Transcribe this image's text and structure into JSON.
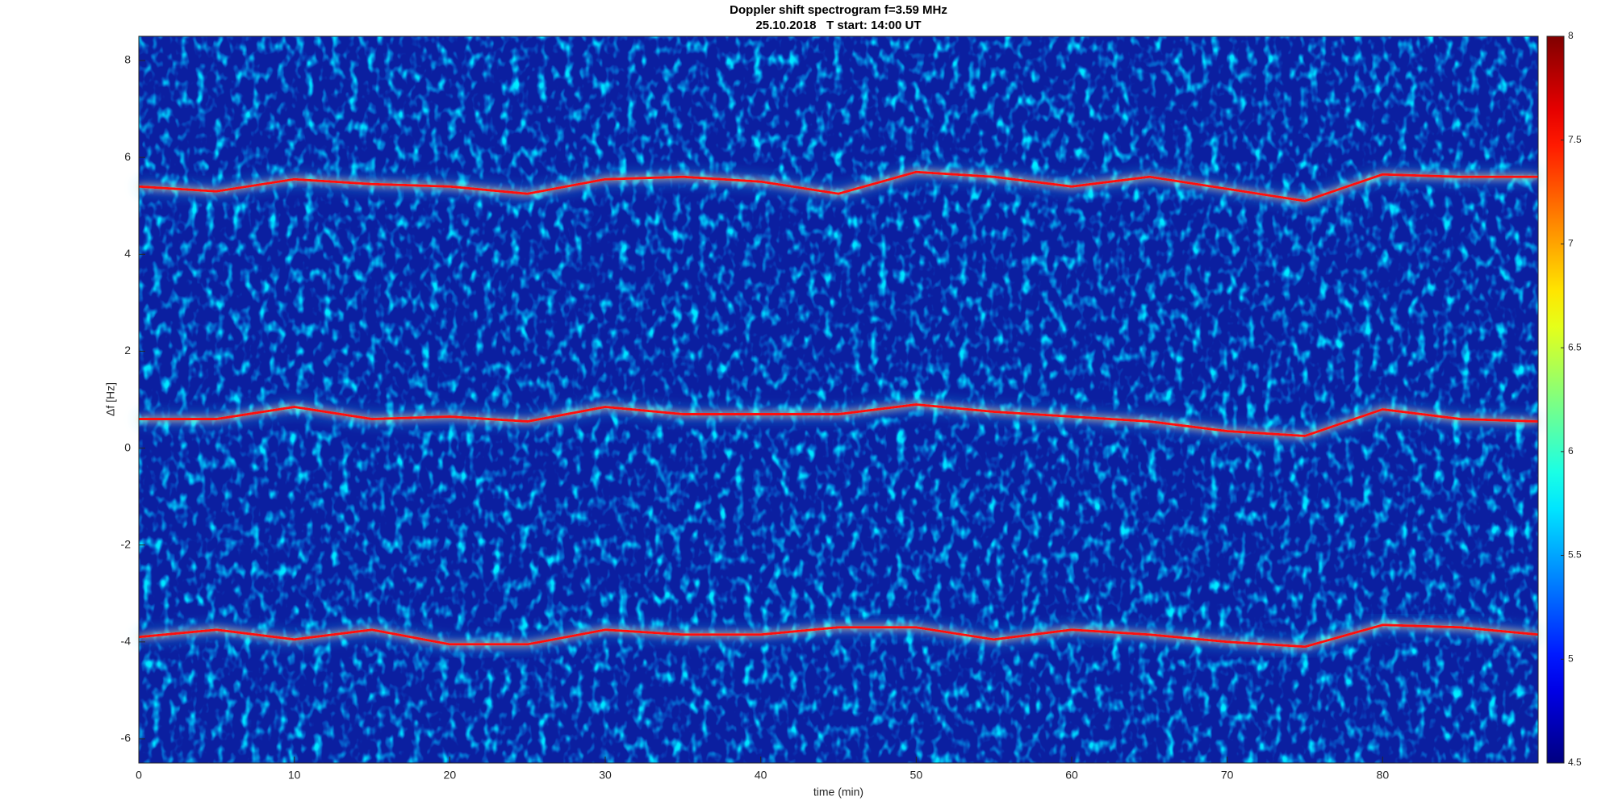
{
  "chart_data": {
    "type": "spectrogram",
    "title": "Doppler shift spectrogram f=3.59 MHz",
    "subtitle": "25.10.2018   T start: 14:00 UT",
    "x_label": "time (min)",
    "y_label": "Δf [Hz]",
    "x": [
      0,
      5,
      10,
      15,
      20,
      25,
      30,
      35,
      40,
      45,
      50,
      55,
      60,
      65,
      70,
      75,
      80,
      85,
      90
    ],
    "series": [
      {
        "color": "#ff1010",
        "values": [
          5.4,
          5.3,
          5.55,
          5.45,
          5.4,
          5.25,
          5.55,
          5.6,
          5.5,
          5.25,
          5.7,
          5.6,
          5.4,
          5.6,
          5.35,
          5.1,
          5.65,
          5.6,
          5.6
        ]
      },
      {
        "color": "#ff1010",
        "values": [
          0.6,
          0.6,
          0.85,
          0.6,
          0.65,
          0.55,
          0.85,
          0.7,
          0.7,
          0.7,
          0.9,
          0.75,
          0.65,
          0.55,
          0.35,
          0.25,
          0.8,
          0.6,
          0.55
        ]
      },
      {
        "color": "#ff1010",
        "values": [
          -3.9,
          -3.75,
          -3.95,
          -3.75,
          -4.05,
          -4.05,
          -3.75,
          -3.85,
          -3.85,
          -3.7,
          -3.7,
          -3.95,
          -3.75,
          -3.85,
          -4.0,
          -4.1,
          -3.65,
          -3.7,
          -3.85
        ]
      }
    ],
    "xlim": [
      0,
      90
    ],
    "xticks": [
      0,
      10,
      20,
      30,
      40,
      50,
      60,
      70,
      80
    ],
    "ylim": [
      -6.5,
      8.5
    ],
    "yticks": [
      -6,
      -4,
      -2,
      0,
      2,
      4,
      6,
      8
    ],
    "colormap": "jet",
    "clim": [
      4.5,
      8
    ],
    "cticks": [
      4.5,
      5,
      5.5,
      6,
      6.5,
      7,
      7.5,
      8
    ],
    "background_color": "#0b1fa0"
  }
}
